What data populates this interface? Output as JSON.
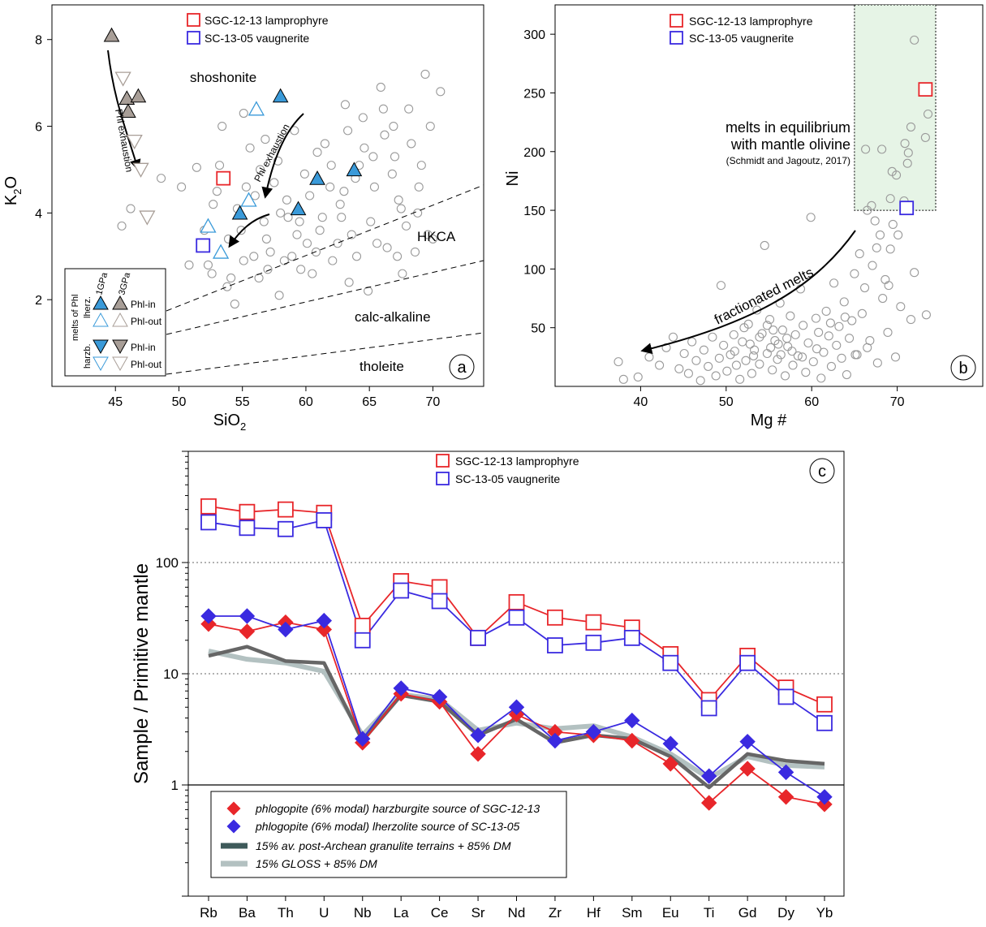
{
  "colors": {
    "red": "#e8262a",
    "blue": "#3a2ae0",
    "grey": "#9a9a9a",
    "dark": "#666666",
    "gloss": "#b3c1c1",
    "lightblue": "#3a9ad9",
    "brown": "#a89e97",
    "legendDark": "#3e5a5a",
    "greenFill": "#e6f4e6"
  },
  "legend_ab": {
    "sgc": "SGC-12-13 lamprophyre",
    "sc": "SC-13-05 vaugnerite"
  },
  "chart_data": [
    {
      "type": "scatter",
      "panel_label": "a",
      "xlabel": "SiO2",
      "xlabel_main": "SiO",
      "xlabel_sub": "2",
      "ylabel": "K2O",
      "ylabel_main": "K",
      "ylabel_sub": "2",
      "ylabel_end": "O",
      "xlim": [
        40,
        74
      ],
      "ylim": [
        0,
        8.8
      ],
      "xticks": [
        "45",
        "50",
        "55",
        "60",
        "65",
        "70"
      ],
      "yticks": [
        "2",
        "4",
        "6",
        "8"
      ],
      "fields": [
        "shoshonite",
        "HKCA",
        "calc-alkaline",
        "tholeite"
      ],
      "arrows": [
        "Phl exhaustion",
        "Phl exhaustion"
      ],
      "samples": {
        "sgc": [
          53.5,
          4.8
        ],
        "sc": [
          51.9,
          3.25
        ]
      },
      "lherz_1gpa_in": [
        [
          58,
          6.7
        ],
        [
          54.8,
          4.0
        ],
        [
          59.4,
          4.1
        ],
        [
          60.9,
          4.8
        ],
        [
          63.8,
          5.0
        ]
      ],
      "lherz_1gpa_out": [
        [
          56.1,
          6.4
        ],
        [
          55.5,
          4.3
        ],
        [
          52.3,
          3.7
        ],
        [
          53.3,
          3.1
        ]
      ],
      "harz_3gpa_in": [
        [
          44.7,
          8.1
        ],
        [
          45.9,
          6.65
        ],
        [
          46.8,
          6.7
        ],
        [
          46,
          6.35
        ]
      ],
      "harz_3gpa_out": [
        [
          45.6,
          7.1
        ],
        [
          46.5,
          5.65
        ],
        [
          47,
          5.0
        ],
        [
          47.5,
          3.9
        ]
      ],
      "inset_legend": {
        "group": "melts of Phl",
        "sub1": "lherz.",
        "sub2": "harzb.",
        "p1": "1GPa",
        "p2": "3GPa",
        "in": "Phl-in",
        "out": "Phl-out"
      },
      "background": [
        [
          45.5,
          3.7
        ],
        [
          46.2,
          4.1
        ],
        [
          47.3,
          2.2
        ],
        [
          48.6,
          4.8
        ],
        [
          50.2,
          4.6
        ],
        [
          50.8,
          2.8
        ],
        [
          51.4,
          5.05
        ],
        [
          52,
          3.6
        ],
        [
          52.6,
          2.6
        ],
        [
          53,
          4.5
        ],
        [
          53.2,
          5.1
        ],
        [
          53.8,
          2.3
        ],
        [
          54.4,
          1.9
        ],
        [
          55.1,
          2.9
        ],
        [
          55.6,
          5.5
        ],
        [
          56.3,
          2.5
        ],
        [
          56.9,
          3.4
        ],
        [
          57.5,
          4.7
        ],
        [
          57.9,
          2.1
        ],
        [
          58.6,
          3.9
        ],
        [
          59.1,
          5.9
        ],
        [
          59.6,
          2.7
        ],
        [
          60.3,
          4.4
        ],
        [
          60.8,
          3.1
        ],
        [
          61.5,
          5.6
        ],
        [
          62.1,
          2.9
        ],
        [
          62.7,
          4.2
        ],
        [
          63.1,
          6.5
        ],
        [
          63.6,
          3.5
        ],
        [
          64.2,
          5.1
        ],
        [
          64.9,
          2.2
        ],
        [
          65.4,
          4.6
        ],
        [
          65.9,
          6.9
        ],
        [
          66.4,
          3.2
        ],
        [
          67,
          5.3
        ],
        [
          67.6,
          2.6
        ],
        [
          68.1,
          6.4
        ],
        [
          68.8,
          4.0
        ],
        [
          69.4,
          7.2
        ],
        [
          70,
          3.4
        ],
        [
          70.6,
          6.8
        ],
        [
          53.4,
          6.0
        ],
        [
          55.1,
          6.3
        ],
        [
          56,
          4.4
        ],
        [
          57.2,
          3.1
        ],
        [
          58,
          4.0
        ],
        [
          59.3,
          3.5
        ],
        [
          61.3,
          3.9
        ],
        [
          62.5,
          3.3
        ],
        [
          63.9,
          4.8
        ],
        [
          65.1,
          3.8
        ],
        [
          66.2,
          5.8
        ],
        [
          67.3,
          4.3
        ],
        [
          68.6,
          3.1
        ],
        [
          54.6,
          4.1
        ],
        [
          56.7,
          3.8
        ],
        [
          58.3,
          2.9
        ],
        [
          60.1,
          3.3
        ],
        [
          61.9,
          4.6
        ],
        [
          63.4,
          2.4
        ],
        [
          64.6,
          5.5
        ],
        [
          66.8,
          4.9
        ],
        [
          68.3,
          5.6
        ],
        [
          69.8,
          6.0
        ],
        [
          52.7,
          4.2
        ],
        [
          55.9,
          3.0
        ],
        [
          57.8,
          5.2
        ],
        [
          59.9,
          4.9
        ],
        [
          62.8,
          3.9
        ],
        [
          65.6,
          3.3
        ],
        [
          67.9,
          3.7
        ],
        [
          53.9,
          3.4
        ],
        [
          56.4,
          5.0
        ],
        [
          58.9,
          3.0
        ],
        [
          61.1,
          3.6
        ],
        [
          63.3,
          5.9
        ],
        [
          66.1,
          6.4
        ],
        [
          69.1,
          5.1
        ],
        [
          54.1,
          2.5
        ],
        [
          57,
          2.7
        ],
        [
          60.5,
          2.6
        ],
        [
          64,
          3.0
        ],
        [
          67.2,
          3.0
        ],
        [
          55.3,
          4.6
        ],
        [
          58.5,
          4.3
        ],
        [
          62,
          5.1
        ],
        [
          65.3,
          5.3
        ],
        [
          68.9,
          4.6
        ],
        [
          52.3,
          2.8
        ],
        [
          56.8,
          5.7
        ],
        [
          60.9,
          5.4
        ],
        [
          64.5,
          6.2
        ],
        [
          66.9,
          6.0
        ],
        [
          69.6,
          3.5
        ],
        [
          54.9,
          3.6
        ],
        [
          59.5,
          3.8
        ],
        [
          63,
          4.5
        ],
        [
          67.5,
          4.1
        ]
      ]
    },
    {
      "type": "scatter",
      "panel_label": "b",
      "xlabel": "Mg #",
      "ylabel": "Ni",
      "xlim": [
        30,
        80
      ],
      "ylim": [
        0,
        325
      ],
      "xticks": [
        "40",
        "50",
        "60",
        "70"
      ],
      "yticks": [
        "50",
        "100",
        "150",
        "200",
        "250",
        "300"
      ],
      "box_label_1": "melts in equilibrium",
      "box_label_2": "with mantle olivine",
      "box_ref": "(Schmidt and Jagoutz, 2017)",
      "arrow_label": "fractionated melts",
      "box": {
        "x": [
          65,
          74.5
        ],
        "y": [
          150,
          325
        ]
      },
      "samples": {
        "sgc": [
          73.3,
          253
        ],
        "sc": [
          71.1,
          152
        ]
      },
      "background": [
        [
          37.4,
          21
        ],
        [
          38,
          6
        ],
        [
          39.7,
          8
        ],
        [
          41,
          25
        ],
        [
          42.2,
          18
        ],
        [
          43,
          33
        ],
        [
          43.8,
          42
        ],
        [
          44.5,
          15
        ],
        [
          45.1,
          28
        ],
        [
          45.6,
          11
        ],
        [
          46,
          38
        ],
        [
          46.5,
          22
        ],
        [
          47,
          5
        ],
        [
          47.4,
          31
        ],
        [
          47.9,
          17
        ],
        [
          48.4,
          42
        ],
        [
          48.8,
          9
        ],
        [
          49.2,
          24
        ],
        [
          49.4,
          86
        ],
        [
          49.7,
          35
        ],
        [
          50.1,
          13
        ],
        [
          50.5,
          27
        ],
        [
          50.9,
          44
        ],
        [
          51.2,
          18
        ],
        [
          51.6,
          6
        ],
        [
          51.9,
          38
        ],
        [
          52.3,
          22
        ],
        [
          52.6,
          53
        ],
        [
          53,
          11
        ],
        [
          53.3,
          31
        ],
        [
          53.6,
          65
        ],
        [
          53.9,
          19
        ],
        [
          54.2,
          45
        ],
        [
          54.5,
          120
        ],
        [
          54.8,
          28
        ],
        [
          55.1,
          57
        ],
        [
          55.4,
          14
        ],
        [
          55.7,
          39
        ],
        [
          56,
          23
        ],
        [
          56.3,
          71
        ],
        [
          56.6,
          48
        ],
        [
          56.9,
          9
        ],
        [
          57.2,
          34
        ],
        [
          57.5,
          60
        ],
        [
          57.8,
          18
        ],
        [
          58.1,
          44
        ],
        [
          58.4,
          26
        ],
        [
          58.7,
          83
        ],
        [
          59,
          52
        ],
        [
          59.3,
          12
        ],
        [
          59.6,
          37
        ],
        [
          59.9,
          144
        ],
        [
          60.2,
          21
        ],
        [
          60.5,
          58
        ],
        [
          60.8,
          46
        ],
        [
          61.1,
          7
        ],
        [
          61.4,
          29
        ],
        [
          61.7,
          64
        ],
        [
          62,
          43
        ],
        [
          62.3,
          17
        ],
        [
          62.6,
          88
        ],
        [
          62.9,
          35
        ],
        [
          63.2,
          51
        ],
        [
          63.5,
          24
        ],
        [
          63.8,
          72
        ],
        [
          64.1,
          10
        ],
        [
          64.4,
          41
        ],
        [
          64.7,
          56
        ],
        [
          65,
          96
        ],
        [
          65.3,
          27
        ],
        [
          65.6,
          113
        ],
        [
          65.9,
          62
        ],
        [
          66.2,
          84
        ],
        [
          66.5,
          150
        ],
        [
          66.8,
          39
        ],
        [
          67.1,
          103
        ],
        [
          67.4,
          141
        ],
        [
          67.7,
          20
        ],
        [
          68,
          129
        ],
        [
          68.3,
          75
        ],
        [
          68.6,
          91
        ],
        [
          68.9,
          46
        ],
        [
          69.2,
          117
        ],
        [
          69.5,
          138
        ],
        [
          69.8,
          25
        ],
        [
          70.1,
          129
        ],
        [
          70.4,
          68
        ],
        [
          71.6,
          57
        ],
        [
          73.4,
          61
        ],
        [
          72,
          97
        ],
        [
          69,
          86
        ],
        [
          67,
          154
        ],
        [
          66.3,
          202
        ],
        [
          68.2,
          202
        ],
        [
          69.4,
          183
        ],
        [
          69.9,
          180
        ],
        [
          70.9,
          207
        ],
        [
          71.3,
          199
        ],
        [
          71.6,
          221
        ],
        [
          72,
          295
        ],
        [
          73.3,
          212
        ],
        [
          73.6,
          232
        ],
        [
          71.2,
          190
        ],
        [
          69.2,
          160
        ],
        [
          67.6,
          118
        ],
        [
          70.8,
          158
        ],
        [
          52.1,
          50
        ],
        [
          53.9,
          42
        ],
        [
          55.2,
          33
        ],
        [
          56.4,
          27
        ],
        [
          57.1,
          41
        ],
        [
          54.8,
          52
        ],
        [
          56.1,
          36
        ],
        [
          57.7,
          30
        ],
        [
          55.5,
          48
        ],
        [
          58.9,
          25
        ],
        [
          53.2,
          26
        ],
        [
          52.8,
          36
        ],
        [
          51,
          30
        ],
        [
          60.6,
          32
        ],
        [
          62.2,
          54
        ],
        [
          63.9,
          59
        ],
        [
          65.1,
          27
        ],
        [
          66.5,
          33
        ]
      ]
    },
    {
      "type": "line",
      "panel_label": "c",
      "scale": "log",
      "ylabel": "Sample / Primitive mantle",
      "ylim": [
        0.1,
        1000
      ],
      "yticks": [
        "1",
        "10",
        "100"
      ],
      "categories": [
        "Rb",
        "Ba",
        "Th",
        "U",
        "Nb",
        "La",
        "Ce",
        "Sr",
        "Nd",
        "Zr",
        "Hf",
        "Sm",
        "Eu",
        "Ti",
        "Gd",
        "Dy",
        "Yb"
      ],
      "series": [
        {
          "name": "SGC-12-13 lamprophyre",
          "color": "#e8262a",
          "marker": "square",
          "values": [
            320,
            285,
            300,
            280,
            27,
            68,
            60,
            21,
            44,
            32,
            29,
            26,
            15,
            5.8,
            14.5,
            7.5,
            5.3
          ]
        },
        {
          "name": "SC-13-05 vaugnerite",
          "color": "#3a2ae0",
          "marker": "square",
          "values": [
            230,
            205,
            200,
            240,
            20,
            56,
            45,
            21,
            32,
            18,
            19,
            21,
            12.5,
            4.9,
            12.5,
            6.2,
            3.6
          ]
        },
        {
          "name": "phlogopite (6% modal) harzburgite source of SGC-12-13",
          "color": "#e8262a",
          "marker": "diamond",
          "values": [
            28,
            24,
            29,
            25,
            2.4,
            6.6,
            5.6,
            1.9,
            4.3,
            3.0,
            2.8,
            2.5,
            1.55,
            0.69,
            1.4,
            0.78,
            0.67
          ]
        },
        {
          "name": "phlogopite (6% modal) lherzolite source of SC-13-05",
          "color": "#3a2ae0",
          "marker": "diamond",
          "values": [
            33,
            33,
            25,
            30,
            2.6,
            7.4,
            6.2,
            2.8,
            5.0,
            2.5,
            3.0,
            3.8,
            2.35,
            1.2,
            2.45,
            1.3,
            0.78
          ]
        },
        {
          "name": "15% av. post-Archean granulite terrains + 85% DM",
          "color": "#666666",
          "marker": "none",
          "values": [
            14.5,
            17.5,
            13,
            12.5,
            2.5,
            6.4,
            5.6,
            2.8,
            3.9,
            2.4,
            2.8,
            2.6,
            1.8,
            0.95,
            1.9,
            1.65,
            1.55
          ]
        },
        {
          "name": "15% GLOSS + 85% DM",
          "color": "#b3c1c1",
          "marker": "none",
          "values": [
            16,
            13.5,
            12.5,
            10.5,
            2.8,
            6.5,
            5.9,
            3.1,
            3.6,
            3.2,
            3.4,
            2.7,
            1.9,
            1.15,
            1.8,
            1.5,
            1.45
          ]
        }
      ]
    }
  ]
}
